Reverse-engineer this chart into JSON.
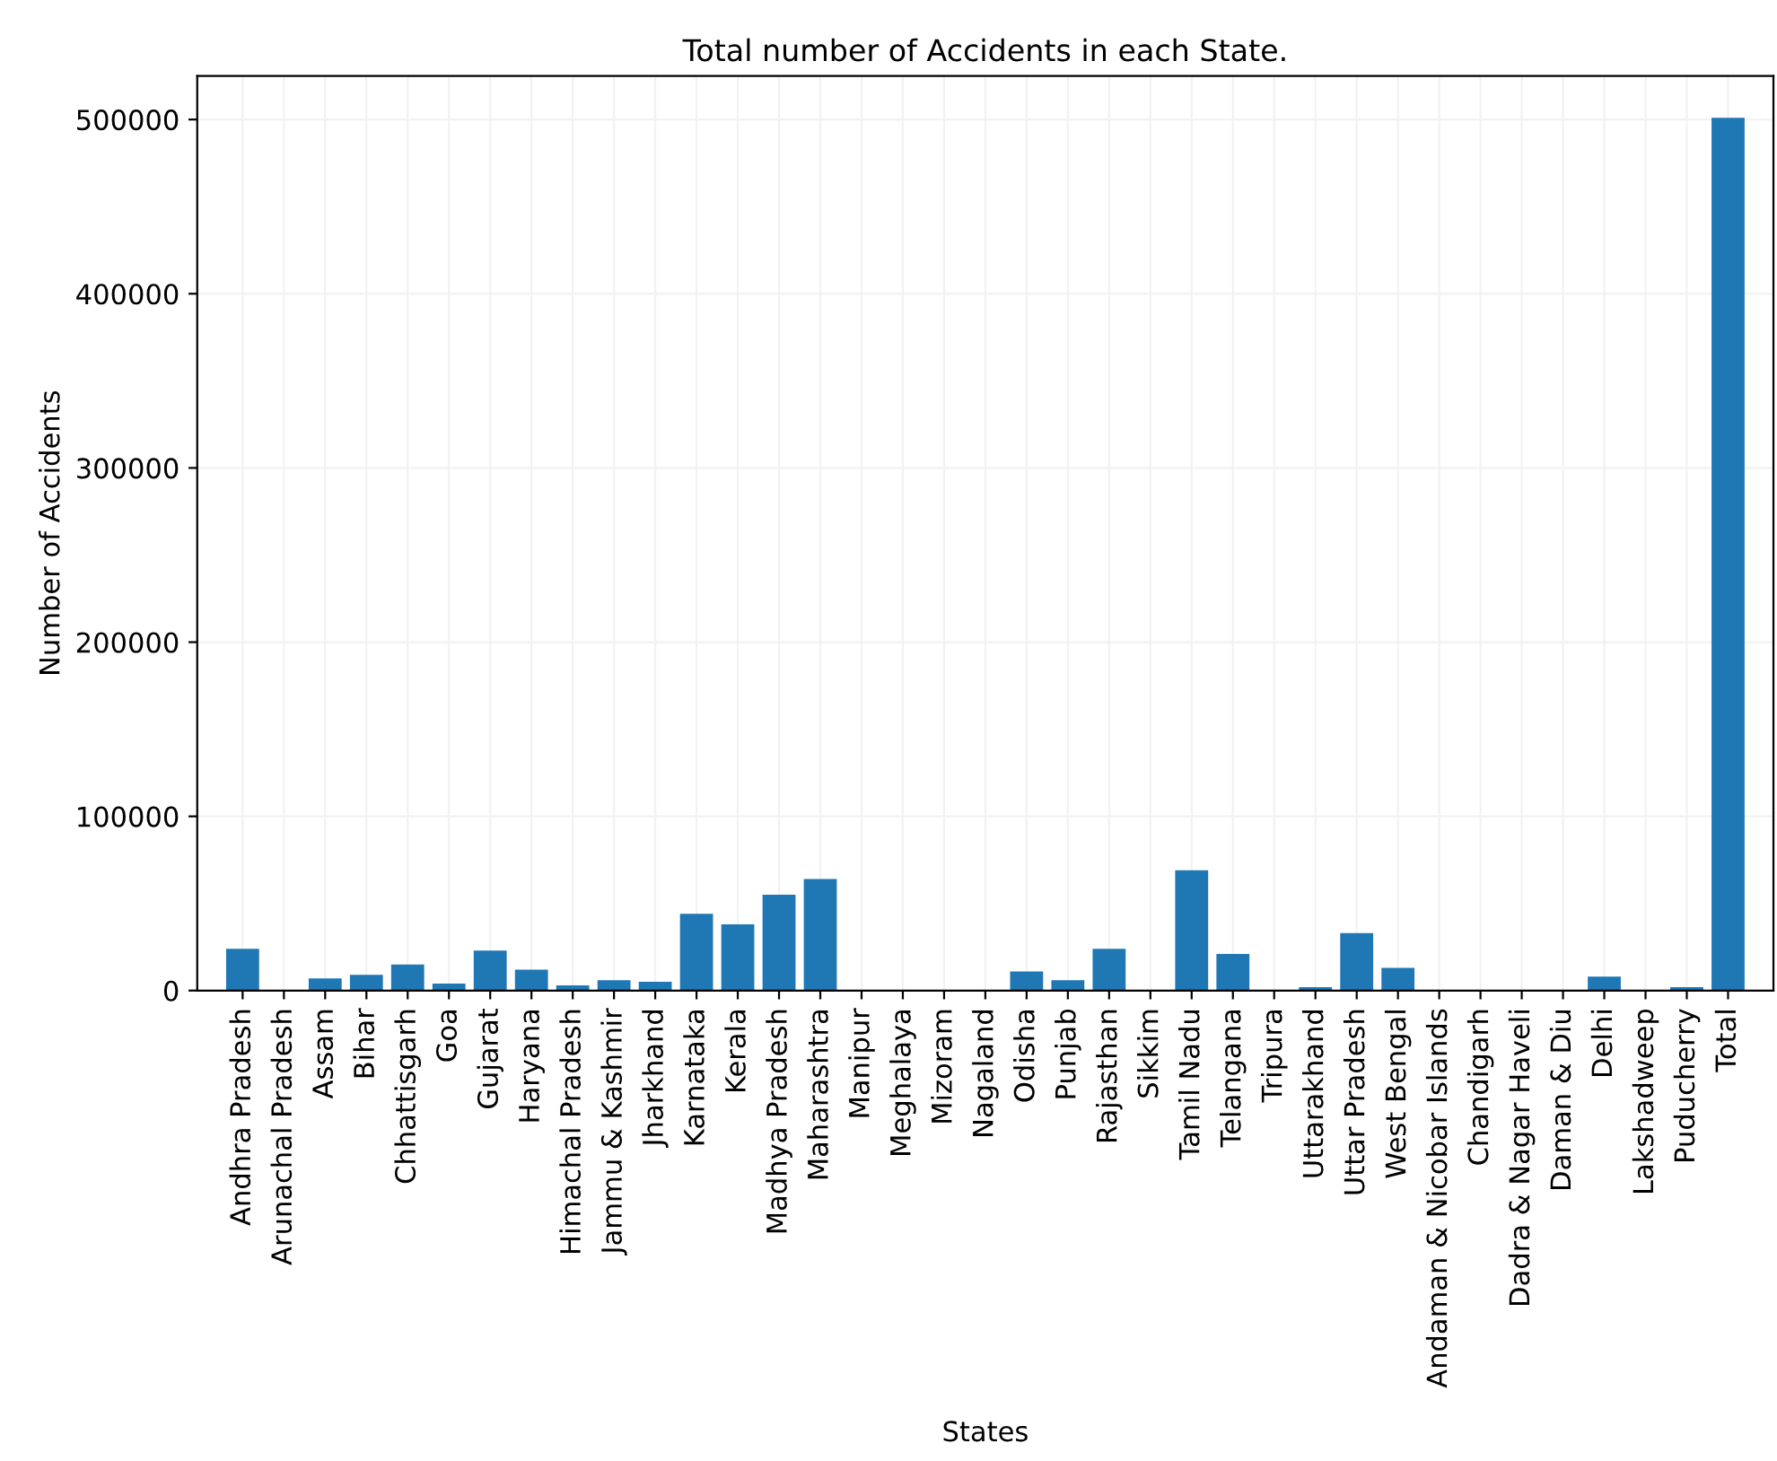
{
  "chart_data": {
    "type": "bar",
    "title": "Total number of Accidents in each State.",
    "xlabel": "States",
    "ylabel": "Number of Accidents",
    "categories": [
      "Andhra Pradesh",
      "Arunachal Pradesh",
      "Assam",
      "Bihar",
      "Chhattisgarh",
      "Goa",
      "Gujarat",
      "Haryana",
      "Himachal Pradesh",
      "Jammu & Kashmir",
      "Jharkhand",
      "Karnataka",
      "Kerala",
      "Madhya Pradesh",
      "Maharashtra",
      "Manipur",
      "Meghalaya",
      "Mizoram",
      "Nagaland",
      "Odisha",
      "Punjab",
      "Rajasthan",
      "Sikkim",
      "Tamil Nadu",
      "Telangana",
      "Tripura",
      "Uttarakhand",
      "Uttar Pradesh",
      "West Bengal",
      "Andaman & Nicobar Islands",
      "Chandigarh",
      "Dadra & Nagar Haveli",
      "Daman & Diu",
      "Delhi",
      "Lakshadweep",
      "Puducherry",
      "Total"
    ],
    "values": [
      24000,
      null,
      7000,
      9000,
      15000,
      4000,
      23000,
      12000,
      3000,
      6000,
      5000,
      44000,
      38000,
      55000,
      64000,
      null,
      null,
      null,
      null,
      11000,
      6000,
      24000,
      null,
      69000,
      21000,
      null,
      2000,
      33000,
      13000,
      null,
      null,
      null,
      null,
      8000,
      0,
      2000,
      501000
    ],
    "color": "#1f77b4",
    "ylim": [
      0,
      525000
    ],
    "yticks": [
      0,
      100000,
      200000,
      300000,
      400000,
      500000
    ],
    "grid": true
  }
}
